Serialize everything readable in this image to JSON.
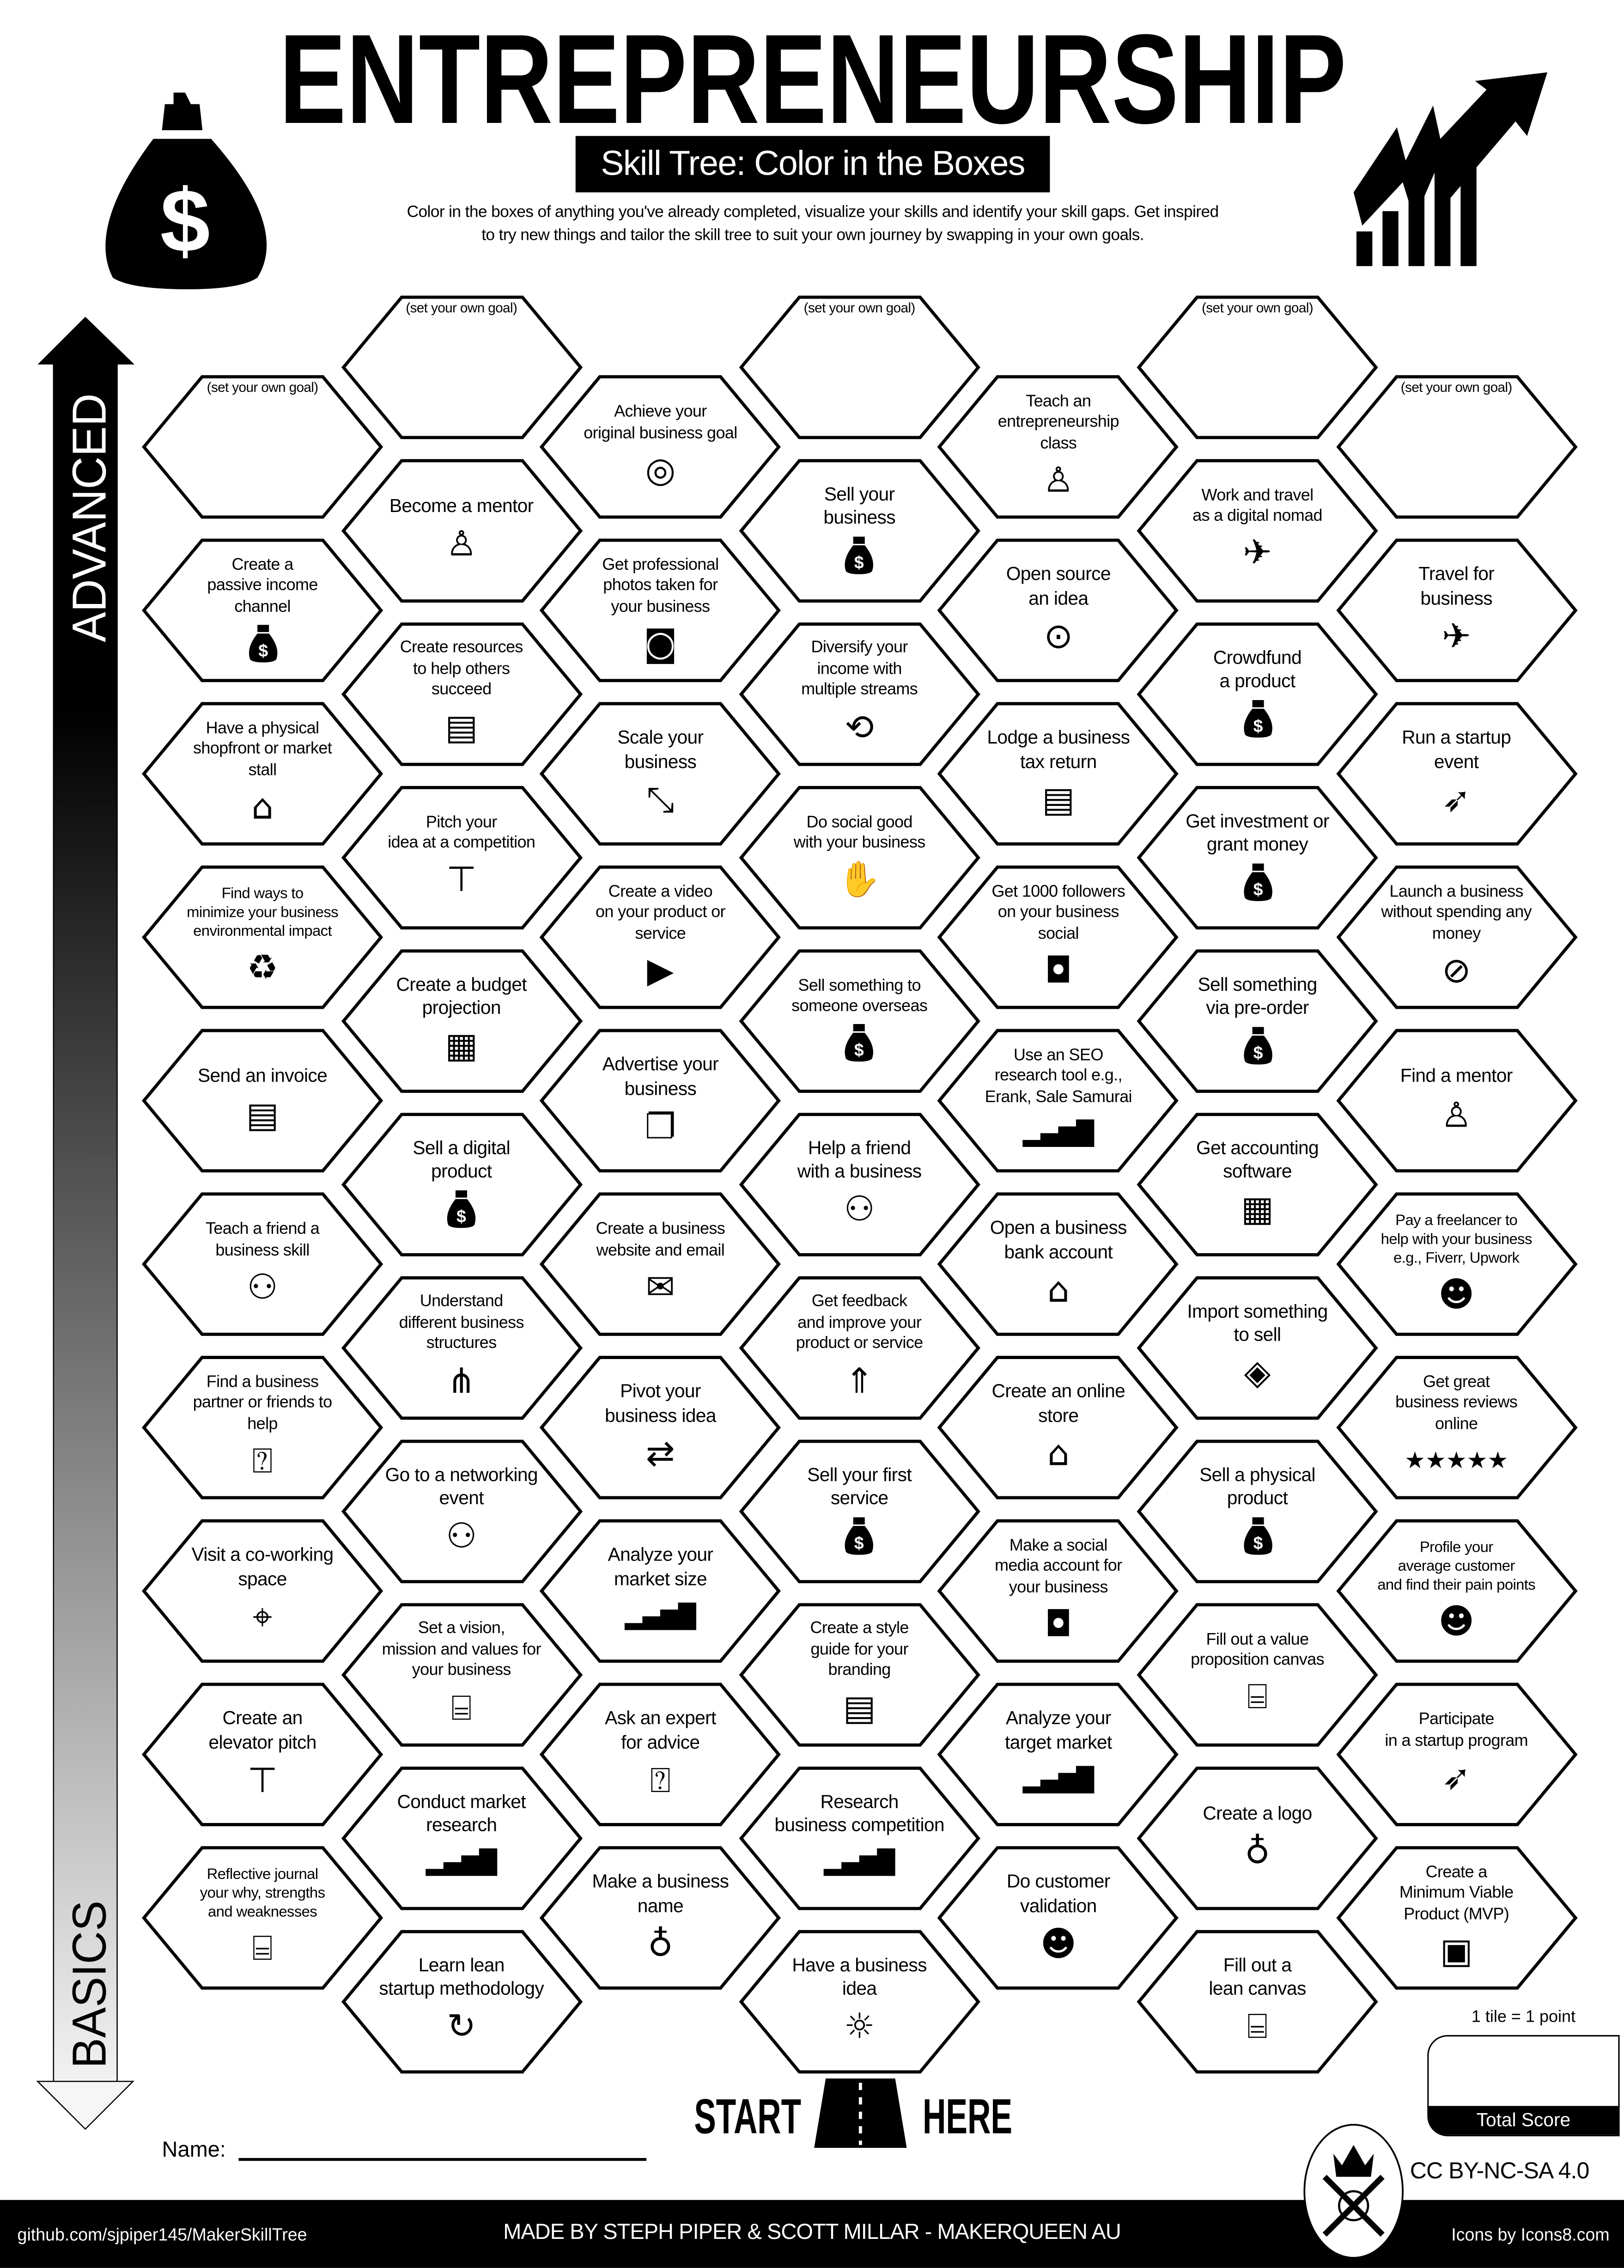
{
  "header": {
    "title": "ENTREPRENEURSHIP",
    "subtitle": "Skill Tree: Color in the Boxes",
    "description_line1": "Color in the boxes of anything you've already completed, visualize your skills and identify your skill gaps.  Get inspired",
    "description_line2": "to try new things and tailor the skill tree to suit your own journey by swapping in your own goals.",
    "left_icon": "money-bag-icon",
    "right_icon": "growth-chart-icon"
  },
  "axis": {
    "top_label": "ADVANCED",
    "bottom_label": "BASICS"
  },
  "goal_placeholder": "(set your own goal)",
  "columns": [
    [
      {
        "goal": true
      },
      {
        "label": "Create a\npassive income\nchannel",
        "icon": "money-bag"
      },
      {
        "label": "Have a physical\nshopfront or market\nstall",
        "icon": "store"
      },
      {
        "label": "Find ways to\nminimize your business\nenvironmental impact",
        "icon": "eco-shoe"
      },
      {
        "label": "Send an invoice",
        "icon": "invoice"
      },
      {
        "label": "Teach a friend a\nbusiness skill",
        "icon": "people-laptop"
      },
      {
        "label": "Find a business\npartner or friends to\nhelp",
        "icon": "person-question"
      },
      {
        "label": "Visit a co-working\nspace",
        "icon": "location-pin"
      },
      {
        "label": "Create an\nelevator pitch",
        "icon": "podium"
      },
      {
        "label": "Reflective journal\nyour why, strengths\nand weaknesses",
        "icon": "easel"
      }
    ],
    [
      {
        "goal": true
      },
      {
        "label": "Become a mentor",
        "icon": "presenter"
      },
      {
        "label": "Create resources\nto help others\nsucceed",
        "icon": "document"
      },
      {
        "label": "Pitch your\nidea at a competition",
        "icon": "podium"
      },
      {
        "label": "Create a budget\nprojection",
        "icon": "table"
      },
      {
        "label": "Sell a digital\nproduct",
        "icon": "money-bag"
      },
      {
        "label": "Understand\ndifferent business\nstructures",
        "icon": "hierarchy"
      },
      {
        "label": "Go to a networking\nevent",
        "icon": "people-laptop"
      },
      {
        "label": "Set a vision,\nmission and values for\nyour business",
        "icon": "easel"
      },
      {
        "label": "Conduct market\nresearch",
        "icon": "growth-chart"
      },
      {
        "label": "Learn lean\nstartup methodology",
        "icon": "cycle"
      }
    ],
    [
      {
        "label": "Achieve your\noriginal business goal",
        "icon": "target"
      },
      {
        "label": "Get professional\nphotos taken for\nyour business",
        "icon": "camera"
      },
      {
        "label": "Scale your\nbusiness",
        "icon": "resize"
      },
      {
        "label": "Create a video\non your product or\nservice",
        "icon": "video"
      },
      {
        "label": "Advertise your\nbusiness",
        "icon": "copy"
      },
      {
        "label": "Create a business\nwebsite and email",
        "icon": "envelope"
      },
      {
        "label": "Pivot your\nbusiness idea",
        "icon": "pivot"
      },
      {
        "label": "Analyze your\nmarket size",
        "icon": "growth-chart"
      },
      {
        "label": "Ask an expert\nfor advice",
        "icon": "person-question"
      },
      {
        "label": "Make a business\nname",
        "icon": "pear"
      }
    ],
    [
      {
        "goal": true
      },
      {
        "label": "Sell your\nbusiness",
        "icon": "money-bag"
      },
      {
        "label": "Diversify your\nincome with\nmultiple streams",
        "icon": "diversify"
      },
      {
        "label": "Do social good\nwith your business",
        "icon": "hand-heart"
      },
      {
        "label": "Sell something to\nsomeone overseas",
        "icon": "money-bag"
      },
      {
        "label": "Help a friend\nwith a business",
        "icon": "people-laptop"
      },
      {
        "label": "Get feedback\nand improve your\nproduct or service",
        "icon": "feedback"
      },
      {
        "label": "Sell your first\nservice",
        "icon": "money-bag"
      },
      {
        "label": "Create a style\nguide for your\nbranding",
        "icon": "document"
      },
      {
        "label": "Research\nbusiness competition",
        "icon": "growth-chart"
      },
      {
        "label": "Have a business\nidea",
        "icon": "lightbulb"
      }
    ],
    [
      {
        "label": "Teach an\nentrepreneurship\nclass",
        "icon": "presenter"
      },
      {
        "label": "Open source\nan idea",
        "icon": "open-source"
      },
      {
        "label": "Lodge a business\ntax return",
        "icon": "tax-form"
      },
      {
        "label": "Get 1000 followers\non your business\nsocial",
        "icon": "chat"
      },
      {
        "label": "Use an SEO\nresearch tool e.g.,\nErank, Sale Samurai",
        "icon": "growth-chart"
      },
      {
        "label": "Open a business\nbank account",
        "icon": "house-dollar"
      },
      {
        "label": "Create an online\nstore",
        "icon": "store"
      },
      {
        "label": "Make a social\nmedia account for\nyour business",
        "icon": "chat"
      },
      {
        "label": "Analyze your\ntarget market",
        "icon": "growth-chart"
      },
      {
        "label": "Do customer\nvalidation",
        "icon": "freelancer"
      }
    ],
    [
      {
        "goal": true
      },
      {
        "label": "Work and travel\nas a digital nomad",
        "icon": "airplane"
      },
      {
        "label": "Crowdfund\na product",
        "icon": "money-bag"
      },
      {
        "label": "Get investment or\ngrant money",
        "icon": "money-bag"
      },
      {
        "label": "Sell something\nvia pre-order",
        "icon": "money-bag"
      },
      {
        "label": "Get accounting\nsoftware",
        "icon": "calculator"
      },
      {
        "label": "Import something\nto sell",
        "icon": "import-box"
      },
      {
        "label": "Sell a physical\nproduct",
        "icon": "money-bag"
      },
      {
        "label": "Fill out a value\nproposition canvas",
        "icon": "easel"
      },
      {
        "label": "Create a logo",
        "icon": "pear"
      },
      {
        "label": "Fill out a\nlean canvas",
        "icon": "easel"
      }
    ],
    [
      {
        "goal": true
      },
      {
        "label": "Travel for\nbusiness",
        "icon": "airplane"
      },
      {
        "label": "Run a startup\nevent",
        "icon": "rocket"
      },
      {
        "label": "Launch a business\nwithout spending any\nmoney",
        "icon": "no-money"
      },
      {
        "label": "Find a mentor",
        "icon": "presenter"
      },
      {
        "label": "Pay a freelancer to\nhelp with your business\ne.g., Fiverr, Upwork",
        "icon": "freelancer"
      },
      {
        "label": "Get great\nbusiness reviews\nonline",
        "icon": "five-stars"
      },
      {
        "label": "Profile your\naverage customer\nand find their pain points",
        "icon": "freelancer"
      },
      {
        "label": "Participate\nin a startup program",
        "icon": "rocket"
      },
      {
        "label": "Create a\nMinimum Viable\nProduct (MVP)",
        "icon": "mvp-box"
      }
    ]
  ],
  "start": {
    "left": "START",
    "right": "HERE",
    "icon": "road-icon"
  },
  "name_label": "Name:",
  "score": {
    "note": "1 tile = 1 point",
    "label": "Total Score",
    "value": ""
  },
  "license": "CC BY-NC-SA 4.0",
  "footer": {
    "repo": "github.com/sjpiper145/MakerSkillTree",
    "credit": "MADE BY STEPH PIPER & SCOTT MILLAR  -  MAKERQUEEN AU",
    "icons_credit": "Icons by Icons8.com"
  }
}
